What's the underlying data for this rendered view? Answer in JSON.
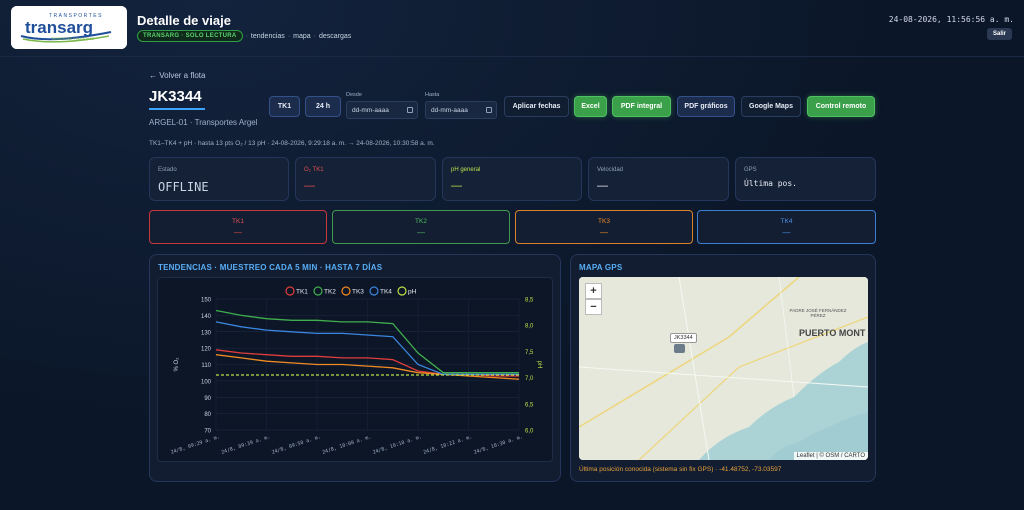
{
  "header": {
    "logo_small": "TRANSPORTES",
    "logo_main": "transarg",
    "logo_tag": "TERRESTRE Y MARITIMO",
    "title": "Detalle de viaje",
    "badge": "TRANSARG · SOLO LECTURA",
    "links": [
      "tendencias",
      "mapa",
      "descargas"
    ],
    "datetime": "24-08-2026, 11:56:56 a. m.",
    "logout": "Salir"
  },
  "trip": {
    "back": "← Volver a flota",
    "unit": "JK3344",
    "fleet": "ARGEL-01 · Transportes Argel",
    "range_info": "TK1–TK4 + pH · hasta 13 pts O₂ / 13 pH · 24-08-2026, 9:29:18 a. m. → 24-08-2026, 10:30:58 a. m."
  },
  "toolbar": {
    "tk1": "TK1",
    "h24": "24 h",
    "from_label": "Desde",
    "to_label": "Hasta",
    "date_placeholder": "dd-mm-aaaa",
    "apply": "Aplicar fechas",
    "excel": "Excel",
    "pdf_full": "PDF integral",
    "pdf_charts": "PDF gráficos",
    "maps": "Google Maps",
    "remote": "Control remoto"
  },
  "status": {
    "estado_label": "Estado",
    "estado_value": "OFFLINE",
    "o2_label": "O₂ TK1",
    "o2_value": "—",
    "ph_label": "pH general",
    "ph_value": "—",
    "vel_label": "Velocidad",
    "vel_value": "—",
    "gps_label": "GPS",
    "gps_value": "Última pos."
  },
  "tanks": [
    {
      "label": "TK1",
      "value": "—",
      "color": "#e03c3c"
    },
    {
      "label": "TK2",
      "value": "—",
      "color": "#3fae4e"
    },
    {
      "label": "TK3",
      "value": "—",
      "color": "#f08a24"
    },
    {
      "label": "TK4",
      "value": "—",
      "color": "#3a86e0"
    }
  ],
  "trends": {
    "title": "TENDENCIAS · MUESTREO CADA 5 MIN · HASTA 7 DÍAS"
  },
  "map": {
    "title": "MAPA GPS",
    "zoom_in": "+",
    "zoom_out": "−",
    "marker_label": "JK3344",
    "city": "PUERTO MONT",
    "district": "PADRE JOSÉ FERNÁNDEZ PÉREZ",
    "attribution": "Leaflet | © OSM / CARTO",
    "note": "Última posición conocida (sistema sin fix GPS) · -41.48752, -73.03597"
  },
  "chart_data": {
    "type": "line",
    "ylabel": "% O₂",
    "y2label": "pH",
    "ylim": [
      70,
      150
    ],
    "y2lim": [
      6.0,
      8.5
    ],
    "yticks": [
      150,
      140,
      130,
      120,
      110,
      100,
      90,
      80,
      70
    ],
    "y2ticks": [
      "8,5",
      "8,0",
      "7,5",
      "7,0",
      "6,5",
      "6,0"
    ],
    "x": [
      "24/8, 09:29 a. m.",
      "24/8, 09:34 a. m.",
      "24/8, 09:39 a. m.",
      "24/8, 09:44 a. m.",
      "24/8, 09:49 a. m.",
      "24/8, 09:54 a. m.",
      "24/8, 09:59 a. m.",
      "24/8, 10:04 a. m.",
      "24/8, 10:09 a. m.",
      "24/8, 10:14 a. m.",
      "24/8, 10:19 a. m.",
      "24/8, 10:24 a. m.",
      "24/8, 10:30 a. m."
    ],
    "xticks": [
      "24/8, 09:29 a. m.",
      "24/8, 09:39 a. m.",
      "24/8, 09:50 a. m.",
      "24/8, 10:00 a. m.",
      "24/8, 10:10 a. m.",
      "24/8, 10:22 a. m.",
      "24/8, 10:30 a. m."
    ],
    "grid": true,
    "legend": "top",
    "series": [
      {
        "name": "TK1",
        "color": "#e03c3c",
        "axis": "y",
        "values": [
          119,
          117,
          116,
          115,
          115,
          114,
          114,
          113,
          106,
          104,
          104,
          103,
          103
        ]
      },
      {
        "name": "TK2",
        "color": "#3fae4e",
        "axis": "y",
        "values": [
          143,
          140,
          138,
          137,
          137,
          136,
          136,
          135,
          117,
          105,
          105,
          105,
          105
        ]
      },
      {
        "name": "TK3",
        "color": "#f08a24",
        "axis": "y",
        "values": [
          116,
          114,
          112,
          111,
          110,
          110,
          109,
          108,
          105,
          104,
          103,
          102,
          101
        ]
      },
      {
        "name": "TK4",
        "color": "#3a86e0",
        "axis": "y",
        "values": [
          136,
          133,
          131,
          130,
          129,
          129,
          128,
          127,
          110,
          104,
          104,
          104,
          104
        ]
      },
      {
        "name": "pH",
        "color": "#b8e04a",
        "axis": "y2",
        "dashed": true,
        "values": [
          7.05,
          7.05,
          7.05,
          7.05,
          7.05,
          7.05,
          7.05,
          7.05,
          7.05,
          7.05,
          7.05,
          7.05,
          7.05
        ]
      }
    ]
  }
}
